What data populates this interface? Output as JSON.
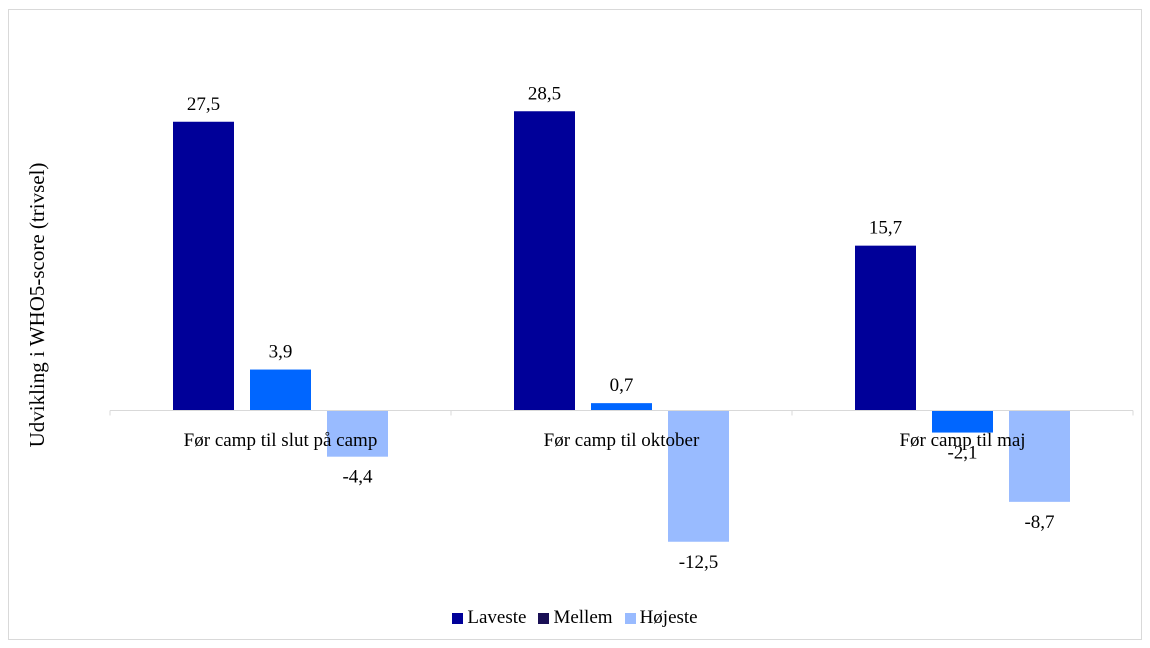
{
  "chart_data": {
    "type": "bar",
    "title": "",
    "xlabel": "",
    "ylabel": "Udvikling i WHO5-score (trivsel)",
    "categories": [
      "Før camp til slut på camp",
      "Før camp til oktober",
      "Før camp til maj"
    ],
    "series": [
      {
        "name": "Laveste",
        "values": [
          27.5,
          28.5,
          15.7
        ],
        "color": "#000099",
        "labels": [
          "27,5",
          "28,5",
          "15,7"
        ]
      },
      {
        "name": "Mellem",
        "values": [
          3.9,
          0.7,
          -2.1
        ],
        "color": "#0066ff",
        "labels": [
          "3,9",
          "0,7",
          "-2,1"
        ]
      },
      {
        "name": "Højeste",
        "values": [
          -4.4,
          -12.5,
          -8.7
        ],
        "color": "#99bbff",
        "labels": [
          "-4,4",
          "-12,5",
          "-8,7"
        ]
      }
    ],
    "legend": {
      "position": "bottom",
      "items": [
        {
          "label": "Laveste",
          "color": "#000099"
        },
        {
          "label": "Mellem",
          "color": "#1a1055"
        },
        {
          "label": "Højeste",
          "color": "#99bbff"
        }
      ]
    },
    "grid": false,
    "show_value_axis": false
  }
}
